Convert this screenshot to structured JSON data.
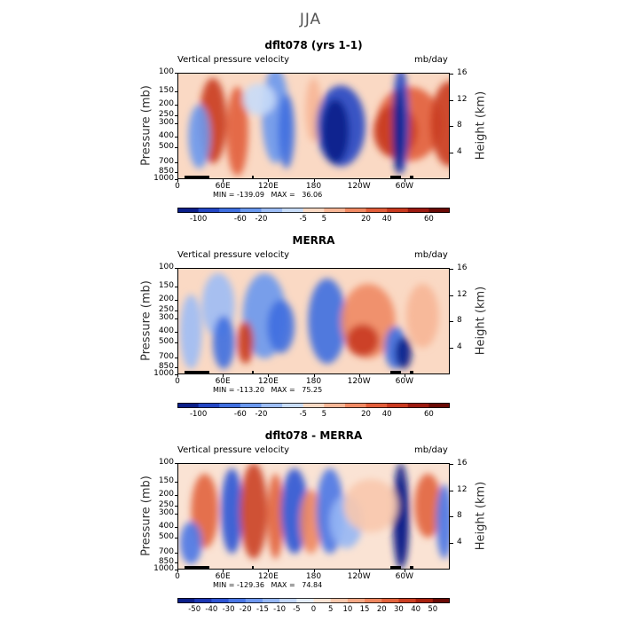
{
  "season": "JJA",
  "chart_data": [
    {
      "type": "heatmap",
      "title": "dflt078 (yrs 1-1)",
      "subtitle_left": "Vertical pressure velocity",
      "units": "mb/day",
      "ylabel": "Pressure (mb)",
      "ylabel_right": "Height (km)",
      "xticks": [
        "0",
        "60E",
        "120E",
        "180",
        "120W",
        "60W"
      ],
      "yticks": [
        "100",
        "150",
        "200",
        "250",
        "300",
        "400",
        "500",
        "700",
        "850",
        "1000"
      ],
      "yticks_right": [
        "16",
        "12",
        "8",
        "4"
      ],
      "stats": "MIN = -139.09   MAX =   36.06",
      "colorbar_labels": [
        "-100",
        "-60",
        "-20",
        "-5",
        "5",
        "20",
        "40",
        "60"
      ],
      "colorbar_colors": [
        "#0b1f8a",
        "#2346c4",
        "#3f6fe0",
        "#6a98ee",
        "#9dbdf5",
        "#c8dcf8",
        "#fad9c4",
        "#f7b696",
        "#f08a64",
        "#e25e3b",
        "#c93a20",
        "#9c1a10",
        "#6b0a06"
      ]
    },
    {
      "type": "heatmap",
      "title": "MERRA",
      "subtitle_left": "Vertical pressure velocity",
      "units": "mb/day",
      "ylabel": "Pressure (mb)",
      "ylabel_right": "Height (km)",
      "xticks": [
        "0",
        "60E",
        "120E",
        "180",
        "120W",
        "60W"
      ],
      "yticks": [
        "100",
        "150",
        "200",
        "250",
        "300",
        "400",
        "500",
        "700",
        "850",
        "1000"
      ],
      "yticks_right": [
        "16",
        "12",
        "8",
        "4"
      ],
      "stats": "MIN = -113.20   MAX =   75.25",
      "colorbar_labels": [
        "-100",
        "-60",
        "-20",
        "-5",
        "5",
        "20",
        "40",
        "60"
      ],
      "colorbar_colors": [
        "#0b1f8a",
        "#2346c4",
        "#3f6fe0",
        "#6a98ee",
        "#9dbdf5",
        "#c8dcf8",
        "#fad9c4",
        "#f7b696",
        "#f08a64",
        "#e25e3b",
        "#c93a20",
        "#9c1a10",
        "#6b0a06"
      ]
    },
    {
      "type": "heatmap",
      "title": "dflt078 - MERRA",
      "subtitle_left": "Vertical pressure velocity",
      "units": "mb/day",
      "ylabel": "Pressure (mb)",
      "ylabel_right": "Height (km)",
      "xticks": [
        "0",
        "60E",
        "120E",
        "180",
        "120W",
        "60W"
      ],
      "yticks": [
        "100",
        "150",
        "200",
        "250",
        "300",
        "400",
        "500",
        "700",
        "850",
        "1000"
      ],
      "yticks_right": [
        "16",
        "12",
        "8",
        "4"
      ],
      "stats": "MIN = -129.36   MAX =   74.84",
      "colorbar_labels": [
        "-50",
        "-40",
        "-30",
        "-20",
        "-15",
        "-10",
        "-5",
        "0",
        "5",
        "10",
        "15",
        "20",
        "30",
        "40",
        "50"
      ],
      "colorbar_colors": [
        "#0b1f8a",
        "#1c37b3",
        "#2f55d4",
        "#4a77e6",
        "#6f98ef",
        "#96b7f4",
        "#c2d6f8",
        "#e4edfa",
        "#fae3d4",
        "#f8c8ad",
        "#f4a886",
        "#ee8760",
        "#e2643e",
        "#cb4024",
        "#a8220f",
        "#6b0a06"
      ]
    }
  ]
}
